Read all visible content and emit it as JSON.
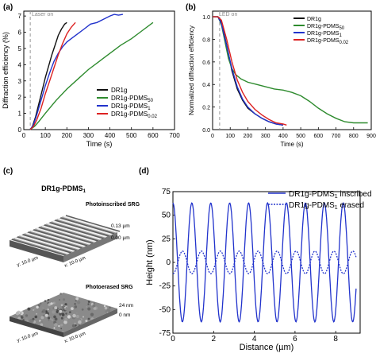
{
  "panels": {
    "a": {
      "letter": "(a)",
      "marker": "Laser on"
    },
    "b": {
      "letter": "(b)",
      "marker": "LED on"
    },
    "c": {
      "letter": "(c)",
      "title": "DR1g-PDMS1",
      "inscribed_label": "Photoinscribed SRG",
      "erased_label": "Photoerased SRG",
      "inscribed_scale": [
        "0.13 µm",
        "0.00 µm"
      ],
      "erased_scale": [
        "24 nm",
        "0 nm"
      ],
      "axis_y": "y: 10.0 µm",
      "axis_x": "x: 10.0 µm"
    },
    "d": {
      "letter": "(d)"
    }
  },
  "chart_data": [
    {
      "type": "line",
      "panel": "a",
      "xlabel": "Time (s)",
      "ylabel": "Diffraction efficiency (%)",
      "xlim": [
        0,
        700
      ],
      "ylim": [
        0,
        7.3
      ],
      "xticks": [
        0,
        100,
        200,
        300,
        400,
        500,
        600,
        700
      ],
      "yticks": [
        0,
        1,
        2,
        3,
        4,
        5,
        6,
        7
      ],
      "marker_x": 30,
      "legend_position": "bottom-right",
      "series": [
        {
          "name": "DR1g",
          "color": "#111111",
          "x": [
            30,
            40,
            55,
            70,
            85,
            100,
            115,
            130,
            145,
            160,
            175,
            190,
            200
          ],
          "y": [
            0,
            0.2,
            0.8,
            1.6,
            2.4,
            3.2,
            3.9,
            4.6,
            5.2,
            5.8,
            6.2,
            6.5,
            6.6
          ]
        },
        {
          "name": "DR1g-PDMS50",
          "color": "#2e8b2e",
          "x": [
            30,
            50,
            70,
            100,
            150,
            200,
            250,
            300,
            350,
            400,
            450,
            500,
            550,
            600
          ],
          "y": [
            0,
            0.2,
            0.5,
            1.0,
            1.8,
            2.5,
            3.1,
            3.7,
            4.2,
            4.7,
            5.2,
            5.6,
            6.1,
            6.6
          ]
        },
        {
          "name": "DR1g-PDMS1",
          "color": "#2233cc",
          "x": [
            30,
            45,
            60,
            80,
            100,
            120,
            140,
            160,
            180,
            200,
            220,
            250,
            280,
            310,
            340,
            370,
            400,
            420,
            440,
            460
          ],
          "y": [
            0,
            0.3,
            0.9,
            1.8,
            2.7,
            3.5,
            4.2,
            4.7,
            5.1,
            5.4,
            5.6,
            5.9,
            6.2,
            6.5,
            6.6,
            6.8,
            7.0,
            7.1,
            7.05,
            7.1
          ]
        },
        {
          "name": "DR1g-PDMS0.02",
          "color": "#dd2222",
          "x": [
            30,
            45,
            60,
            80,
            100,
            120,
            140,
            160,
            180,
            200,
            220,
            240
          ],
          "y": [
            0,
            0.2,
            0.6,
            1.3,
            2.2,
            3.0,
            3.8,
            4.6,
            5.3,
            5.9,
            6.3,
            6.6
          ]
        }
      ]
    },
    {
      "type": "line",
      "panel": "b",
      "xlabel": "Time (s)",
      "ylabel": "Normalized diffraction efficiency",
      "xlim": [
        0,
        900
      ],
      "ylim": [
        0,
        1.05
      ],
      "xticks": [
        0,
        100,
        200,
        300,
        400,
        500,
        600,
        700,
        800,
        900
      ],
      "yticks": [
        0.0,
        0.2,
        0.4,
        0.6,
        0.8,
        1.0
      ],
      "marker_x": 40,
      "legend_position": "top-right",
      "series": [
        {
          "name": "DR1g",
          "color": "#111111",
          "x": [
            0,
            30,
            50,
            80,
            110,
            140,
            170,
            200,
            240,
            280,
            320,
            360,
            400
          ],
          "y": [
            1.0,
            1.0,
            0.95,
            0.75,
            0.52,
            0.36,
            0.26,
            0.19,
            0.14,
            0.1,
            0.07,
            0.05,
            0.04
          ]
        },
        {
          "name": "DR1g-PDMS50",
          "color": "#2e8b2e",
          "x": [
            0,
            30,
            50,
            70,
            90,
            110,
            130,
            160,
            200,
            250,
            300,
            350,
            400,
            450,
            500,
            550,
            600,
            650,
            700,
            750,
            800,
            850,
            880
          ],
          "y": [
            1.0,
            1.0,
            0.93,
            0.78,
            0.63,
            0.54,
            0.49,
            0.45,
            0.42,
            0.4,
            0.38,
            0.36,
            0.35,
            0.33,
            0.3,
            0.25,
            0.19,
            0.14,
            0.1,
            0.07,
            0.06,
            0.06,
            0.06
          ]
        },
        {
          "name": "DR1g-PDMS1",
          "color": "#2233cc",
          "x": [
            0,
            30,
            50,
            80,
            110,
            140,
            170,
            200,
            240,
            280,
            320,
            360,
            400
          ],
          "y": [
            1.0,
            1.0,
            0.94,
            0.74,
            0.54,
            0.38,
            0.27,
            0.2,
            0.14,
            0.1,
            0.07,
            0.05,
            0.04
          ]
        },
        {
          "name": "DR1g-PDMS0.02",
          "color": "#dd2222",
          "x": [
            0,
            30,
            50,
            80,
            110,
            140,
            170,
            200,
            240,
            280,
            320,
            360,
            400,
            420
          ],
          "y": [
            1.0,
            1.0,
            0.97,
            0.8,
            0.6,
            0.44,
            0.33,
            0.25,
            0.18,
            0.13,
            0.09,
            0.06,
            0.05,
            0.04
          ]
        }
      ]
    },
    {
      "type": "line",
      "panel": "d",
      "xlabel": "Distance (µm)",
      "ylabel": "Height (nm)",
      "xlim": [
        0,
        9.2
      ],
      "ylim": [
        -75,
        75
      ],
      "xticks": [
        0,
        2,
        4,
        6,
        8
      ],
      "yticks": [
        -75,
        -50,
        -25,
        0,
        25,
        50,
        75
      ],
      "legend_position": "top-right",
      "series": [
        {
          "name": "DR1g-PDMS1 inscribed",
          "color": "#2233cc",
          "style": "solid",
          "function": "sine",
          "amplitude": 63,
          "period": 0.93,
          "phase_x": 0.0,
          "x_range": [
            0,
            9.0
          ]
        },
        {
          "name": "DR1g-PDMS1 erased",
          "color": "#2233cc",
          "style": "dotted",
          "function": "sine",
          "amplitude": 12,
          "period": 0.93,
          "phase_x": 0.47,
          "x_range": [
            0,
            9.0
          ]
        }
      ]
    }
  ]
}
